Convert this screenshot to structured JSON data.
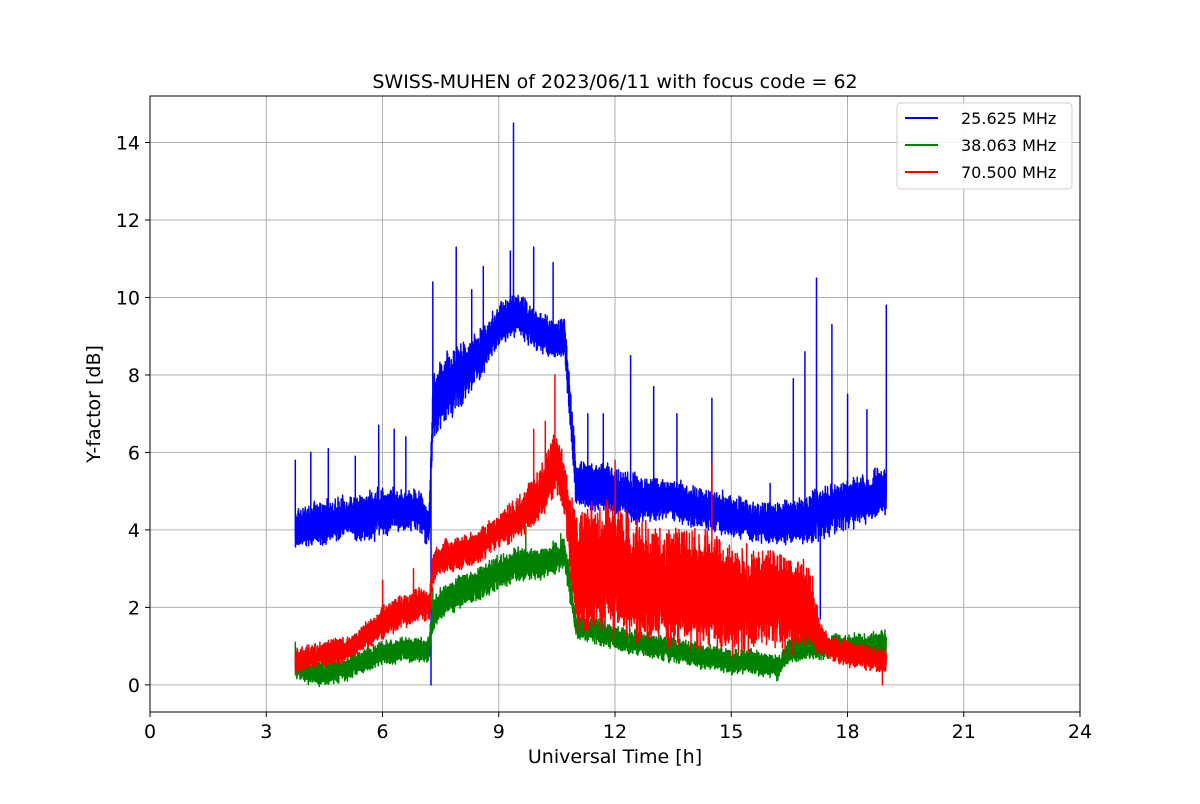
{
  "chart_data": {
    "type": "line",
    "title": "SWISS-MUHEN of 2023/06/11 with focus code = 62",
    "xlabel": "Universal Time [h]",
    "ylabel": "Y-factor [dB]",
    "xlim": [
      0,
      24
    ],
    "ylim": [
      -0.7,
      15.2
    ],
    "xticks": [
      0,
      3,
      6,
      9,
      12,
      15,
      18,
      21,
      24
    ],
    "xtick_labels": [
      "0",
      "3",
      "6",
      "9",
      "12",
      "15",
      "18",
      "21",
      "24"
    ],
    "yticks": [
      0,
      2,
      4,
      6,
      8,
      10,
      12,
      14
    ],
    "ytick_labels": [
      "0",
      "2",
      "4",
      "6",
      "8",
      "10",
      "12",
      "14"
    ],
    "grid": true,
    "legend_position": "top-right",
    "series": [
      {
        "name": "25.625 MHz",
        "color": "#0000ff",
        "x": [
          3.75,
          4.0,
          4.5,
          5.0,
          5.5,
          6.0,
          6.5,
          7.0,
          7.2,
          7.3,
          7.5,
          8.0,
          8.5,
          9.0,
          9.5,
          10.0,
          10.5,
          10.7,
          11.0,
          11.5,
          12.0,
          12.5,
          13.0,
          13.5,
          14.0,
          14.5,
          15.0,
          15.5,
          16.0,
          16.5,
          17.0,
          17.5,
          18.0,
          18.5,
          19.0
        ],
        "y": [
          4.0,
          4.1,
          4.2,
          4.3,
          4.3,
          4.5,
          4.5,
          4.5,
          4.0,
          7.0,
          7.5,
          8.0,
          8.5,
          9.3,
          9.6,
          9.1,
          8.9,
          9.0,
          5.2,
          5.1,
          5.0,
          4.8,
          4.8,
          4.8,
          4.6,
          4.5,
          4.4,
          4.2,
          4.2,
          4.2,
          4.3,
          4.5,
          4.7,
          4.8,
          5.0
        ],
        "noise": [
          0.5,
          0.5,
          0.5,
          0.5,
          0.6,
          0.6,
          0.5,
          0.5,
          0.5,
          0.8,
          0.9,
          0.8,
          0.6,
          0.5,
          0.5,
          0.5,
          0.5,
          0.5,
          0.6,
          0.6,
          0.6,
          0.6,
          0.5,
          0.5,
          0.5,
          0.5,
          0.5,
          0.5,
          0.5,
          0.5,
          0.6,
          0.6,
          0.6,
          0.6,
          0.6
        ],
        "spikes": [
          [
            3.75,
            5.8
          ],
          [
            4.15,
            6.0
          ],
          [
            4.6,
            6.1
          ],
          [
            5.3,
            5.9
          ],
          [
            5.9,
            6.7
          ],
          [
            6.3,
            6.6
          ],
          [
            6.6,
            6.4
          ],
          [
            7.25,
            0.0
          ],
          [
            7.3,
            10.4
          ],
          [
            7.9,
            11.3
          ],
          [
            8.3,
            10.2
          ],
          [
            8.6,
            10.8
          ],
          [
            9.3,
            11.2
          ],
          [
            9.38,
            14.5
          ],
          [
            9.9,
            11.3
          ],
          [
            10.4,
            10.9
          ],
          [
            11.3,
            7.0
          ],
          [
            11.7,
            7.0
          ],
          [
            12.4,
            8.5
          ],
          [
            13.0,
            7.7
          ],
          [
            13.6,
            7.0
          ],
          [
            14.5,
            7.4
          ],
          [
            16.0,
            5.2
          ],
          [
            16.6,
            7.9
          ],
          [
            16.9,
            8.6
          ],
          [
            17.2,
            10.5
          ],
          [
            17.3,
            1.7
          ],
          [
            17.6,
            9.3
          ],
          [
            18.0,
            7.5
          ],
          [
            18.5,
            7.1
          ],
          [
            19.0,
            9.8
          ]
        ]
      },
      {
        "name": "38.063 MHz",
        "color": "#008000",
        "x": [
          3.75,
          4.0,
          4.5,
          5.0,
          5.5,
          6.0,
          6.5,
          7.0,
          7.2,
          7.3,
          7.5,
          8.0,
          8.5,
          9.0,
          9.5,
          10.0,
          10.5,
          10.7,
          11.0,
          11.5,
          12.0,
          12.5,
          13.0,
          13.5,
          14.0,
          14.5,
          15.0,
          15.5,
          16.0,
          16.2,
          16.5,
          17.0,
          17.5,
          18.0,
          18.5,
          19.0
        ],
        "y": [
          0.5,
          0.35,
          0.3,
          0.4,
          0.6,
          0.8,
          0.9,
          0.9,
          0.9,
          1.8,
          2.1,
          2.4,
          2.6,
          2.9,
          3.1,
          3.1,
          3.3,
          3.4,
          1.5,
          1.4,
          1.2,
          1.1,
          1.0,
          0.9,
          0.8,
          0.7,
          0.6,
          0.6,
          0.5,
          0.4,
          0.9,
          1.0,
          1.0,
          1.0,
          1.0,
          1.1
        ],
        "noise": [
          0.3,
          0.3,
          0.3,
          0.3,
          0.3,
          0.3,
          0.3,
          0.3,
          0.3,
          0.4,
          0.4,
          0.4,
          0.4,
          0.4,
          0.4,
          0.4,
          0.4,
          0.4,
          0.3,
          0.3,
          0.3,
          0.3,
          0.3,
          0.3,
          0.3,
          0.3,
          0.3,
          0.3,
          0.3,
          0.3,
          0.3,
          0.3,
          0.3,
          0.3,
          0.3,
          0.3
        ],
        "spikes": [
          [
            3.75,
            1.1
          ],
          [
            7.3,
            2.5
          ],
          [
            9.7,
            4.1
          ],
          [
            10.6,
            3.9
          ]
        ]
      },
      {
        "name": "70.500 MHz",
        "color": "#ff0000",
        "x": [
          3.75,
          4.0,
          4.5,
          5.0,
          5.5,
          6.0,
          6.5,
          7.0,
          7.2,
          7.3,
          7.5,
          8.0,
          8.5,
          9.0,
          9.5,
          10.0,
          10.5,
          10.7,
          11.0,
          11.5,
          12.0,
          12.5,
          13.0,
          13.5,
          14.0,
          14.5,
          15.0,
          15.5,
          16.0,
          16.5,
          17.0,
          17.3,
          17.5,
          18.0,
          18.5,
          19.0
        ],
        "y": [
          0.6,
          0.7,
          0.8,
          0.9,
          1.2,
          1.6,
          1.9,
          2.1,
          2.0,
          3.0,
          3.3,
          3.4,
          3.6,
          4.0,
          4.3,
          4.8,
          5.8,
          5.0,
          3.0,
          3.0,
          3.0,
          2.7,
          2.6,
          2.5,
          2.5,
          2.4,
          2.2,
          2.2,
          2.3,
          2.1,
          2.0,
          1.2,
          1.0,
          0.8,
          0.7,
          0.6
        ],
        "noise": [
          0.3,
          0.3,
          0.3,
          0.3,
          0.3,
          0.4,
          0.4,
          0.4,
          0.4,
          0.4,
          0.4,
          0.4,
          0.4,
          0.4,
          0.5,
          0.6,
          0.8,
          0.6,
          1.5,
          1.6,
          1.6,
          1.5,
          1.4,
          1.4,
          1.4,
          1.3,
          1.3,
          1.2,
          1.2,
          1.2,
          1.0,
          0.4,
          0.3,
          0.3,
          0.3,
          0.3
        ],
        "spikes": [
          [
            6.0,
            2.7
          ],
          [
            6.8,
            3.0
          ],
          [
            9.9,
            6.6
          ],
          [
            10.2,
            6.8
          ],
          [
            10.45,
            8.0
          ],
          [
            12.0,
            5.8
          ],
          [
            14.5,
            5.7
          ],
          [
            17.1,
            2.8
          ],
          [
            18.9,
            0.0
          ]
        ]
      }
    ]
  }
}
